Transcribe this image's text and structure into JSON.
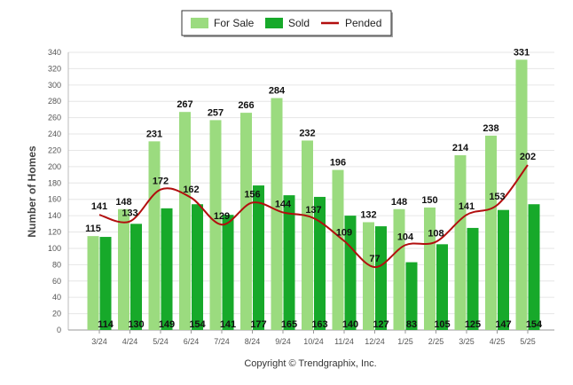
{
  "chart_data": {
    "type": "bar",
    "categories": [
      "3/24",
      "4/24",
      "5/24",
      "6/24",
      "7/24",
      "8/24",
      "9/24",
      "10/24",
      "11/24",
      "12/24",
      "1/25",
      "2/25",
      "3/25",
      "4/25",
      "5/25"
    ],
    "series": [
      {
        "name": "For Sale",
        "type": "bar",
        "color": "#9bdb7f",
        "values": [
          115,
          148,
          231,
          267,
          257,
          266,
          284,
          232,
          196,
          132,
          148,
          150,
          214,
          238,
          331
        ]
      },
      {
        "name": "Sold",
        "type": "bar",
        "color": "#17a92a",
        "values": [
          114,
          130,
          149,
          154,
          141,
          177,
          165,
          163,
          140,
          127,
          83,
          105,
          125,
          147,
          154
        ]
      },
      {
        "name": "Pended",
        "type": "line",
        "color": "#b20e0e",
        "values": [
          141,
          133,
          172,
          162,
          129,
          156,
          144,
          137,
          109,
          77,
          104,
          108,
          141,
          153,
          202
        ]
      }
    ],
    "ylabel": "Number of Homes",
    "xlabel": "",
    "ylim": [
      0,
      340
    ],
    "y_ticks": [
      0,
      20,
      40,
      60,
      80,
      100,
      120,
      140,
      160,
      180,
      200,
      220,
      240,
      260,
      280,
      300,
      320,
      340
    ],
    "grid": true,
    "legend_position": "top-center"
  },
  "legend": {
    "for_sale": "For Sale",
    "sold": "Sold",
    "pended": "Pended"
  },
  "footer": {
    "copyright": "Copyright © Trendgraphix, Inc."
  }
}
